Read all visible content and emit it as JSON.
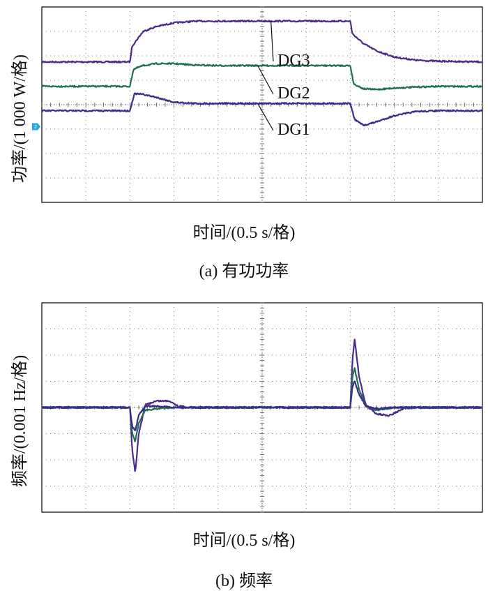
{
  "chart_data": [
    {
      "type": "line",
      "title": "",
      "caption": "(a) 有功功率",
      "xlabel": "时间/(0.5 s/格)",
      "ylabel": "功率/(1 000 W/格)",
      "x_divisions": 10,
      "y_divisions": 8,
      "xlim": [
        0,
        10
      ],
      "ylim": [
        0,
        8
      ],
      "grid": true,
      "channel_marker": "2",
      "series": [
        {
          "name": "DG3",
          "color": "#4b2a8a",
          "x": [
            0,
            2.0,
            2.05,
            2.3,
            2.6,
            3.0,
            3.5,
            4.0,
            5.0,
            6.0,
            7.0,
            7.05,
            7.3,
            7.6,
            8.0,
            8.5,
            9.0,
            10.0
          ],
          "y": [
            5.75,
            5.75,
            6.4,
            7.0,
            7.2,
            7.35,
            7.42,
            7.42,
            7.42,
            7.42,
            7.42,
            6.9,
            6.5,
            6.2,
            5.95,
            5.82,
            5.78,
            5.75
          ]
        },
        {
          "name": "DG2",
          "color": "#1f6f55",
          "x": [
            0,
            2.0,
            2.08,
            2.3,
            2.6,
            3.0,
            3.5,
            4.0,
            5.0,
            6.0,
            7.0,
            7.08,
            7.3,
            7.6,
            8.0,
            8.5,
            9.0,
            10.0
          ],
          "y": [
            4.75,
            4.75,
            5.45,
            5.6,
            5.68,
            5.68,
            5.62,
            5.6,
            5.6,
            5.6,
            5.6,
            4.85,
            4.65,
            4.62,
            4.68,
            4.72,
            4.75,
            4.75
          ]
        },
        {
          "name": "DG1",
          "color": "#3a2d8c",
          "x": [
            0,
            2.0,
            2.1,
            2.3,
            2.6,
            3.0,
            3.5,
            4.0,
            5.0,
            6.0,
            7.0,
            7.1,
            7.3,
            7.6,
            8.0,
            8.5,
            9.0,
            10.0
          ],
          "y": [
            3.75,
            3.75,
            4.45,
            4.42,
            4.3,
            4.1,
            4.05,
            4.05,
            4.05,
            4.05,
            4.05,
            3.4,
            3.15,
            3.3,
            3.55,
            3.72,
            3.75,
            3.75
          ]
        }
      ],
      "annotations": [
        "DG3",
        "DG2",
        "DG1"
      ]
    },
    {
      "type": "line",
      "title": "",
      "caption": "(b) 频率",
      "xlabel": "时间/(0.5 s/格)",
      "ylabel": "频率/(0.001 Hz/格)",
      "x_divisions": 10,
      "y_divisions": 8,
      "xlim": [
        0,
        10
      ],
      "ylim": [
        -4,
        4
      ],
      "grid": true,
      "series": [
        {
          "color": "#4b2a8a",
          "x": [
            0,
            2.0,
            2.05,
            2.12,
            2.2,
            2.35,
            2.6,
            2.9,
            3.1,
            3.4,
            7.0,
            7.05,
            7.1,
            7.2,
            7.35,
            7.6,
            7.9,
            8.2,
            8.5,
            10.0
          ],
          "y": [
            0,
            0,
            -1.6,
            -2.5,
            -1.0,
            0.1,
            0.25,
            0.25,
            0.05,
            0,
            0,
            1.8,
            2.6,
            1.2,
            0.1,
            -0.25,
            -0.3,
            -0.05,
            0,
            0
          ]
        },
        {
          "color": "#1f6f55",
          "x": [
            0,
            2.0,
            2.05,
            2.12,
            2.2,
            2.35,
            2.6,
            3.0,
            7.0,
            7.05,
            7.1,
            7.2,
            7.35,
            7.6,
            8.0,
            10.0
          ],
          "y": [
            0,
            0,
            -1.0,
            -1.3,
            -0.6,
            -0.1,
            -0.05,
            0,
            0,
            1.2,
            1.5,
            0.7,
            0.05,
            -0.1,
            0,
            0
          ]
        },
        {
          "color": "#3a2d8c",
          "x": [
            0,
            2.0,
            2.05,
            2.12,
            2.2,
            2.35,
            2.6,
            3.0,
            7.0,
            7.05,
            7.1,
            7.2,
            7.35,
            7.6,
            8.0,
            10.0
          ],
          "y": [
            0,
            0,
            -0.7,
            -0.9,
            -0.3,
            0.05,
            0.05,
            0,
            0,
            0.8,
            1.0,
            0.5,
            0.05,
            -0.05,
            0,
            0
          ]
        }
      ]
    }
  ]
}
